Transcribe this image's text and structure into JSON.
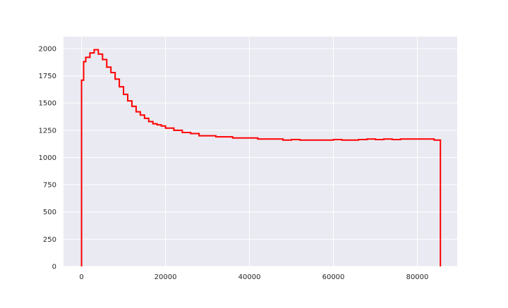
{
  "chart_data": {
    "type": "line",
    "step": true,
    "title": "",
    "xlabel": "",
    "ylabel": "",
    "xlim": [
      -4300,
      89500
    ],
    "ylim": [
      0,
      2110
    ],
    "x_ticks": [
      0,
      20000,
      40000,
      60000,
      80000
    ],
    "x_tick_labels": [
      "0",
      "20000",
      "40000",
      "60000",
      "80000"
    ],
    "y_ticks": [
      0,
      250,
      500,
      750,
      1000,
      1250,
      1500,
      1750,
      2000
    ],
    "y_tick_labels": [
      "0",
      "250",
      "500",
      "750",
      "1000",
      "1250",
      "1500",
      "1750",
      "2000"
    ],
    "grid": true,
    "legend": "none",
    "series": [
      {
        "color": "#ff0000",
        "x": [
          0,
          500,
          1000,
          2000,
          3000,
          4000,
          5000,
          6000,
          7000,
          8000,
          9000,
          10000,
          11000,
          12000,
          13000,
          14000,
          15000,
          16000,
          17000,
          18000,
          19000,
          20000,
          22000,
          24000,
          26000,
          28000,
          30000,
          32000,
          34000,
          36000,
          38000,
          40000,
          42000,
          44000,
          46000,
          48000,
          50000,
          52000,
          54000,
          56000,
          58000,
          60000,
          62000,
          64000,
          66000,
          68000,
          70000,
          72000,
          74000,
          76000,
          78000,
          80000,
          82000,
          84000,
          85500
        ],
        "y": [
          1710,
          1880,
          1920,
          1960,
          1990,
          1950,
          1900,
          1830,
          1780,
          1720,
          1650,
          1580,
          1520,
          1470,
          1420,
          1390,
          1360,
          1330,
          1310,
          1300,
          1290,
          1270,
          1250,
          1230,
          1220,
          1200,
          1200,
          1190,
          1190,
          1180,
          1180,
          1180,
          1170,
          1170,
          1170,
          1160,
          1165,
          1160,
          1160,
          1160,
          1160,
          1165,
          1160,
          1160,
          1165,
          1170,
          1165,
          1170,
          1165,
          1170,
          1170,
          1170,
          1170,
          1160,
          1150
        ]
      }
    ]
  }
}
